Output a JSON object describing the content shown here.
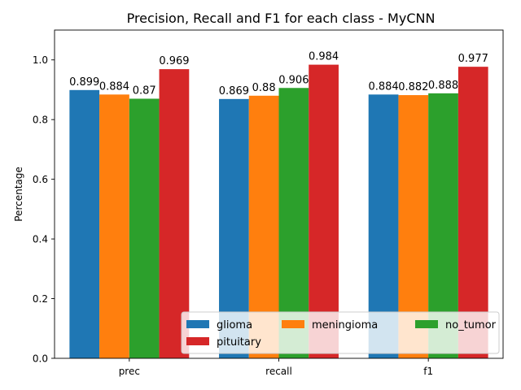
{
  "chart_data": {
    "type": "bar",
    "title": "Precision, Recall and F1 for each class - MyCNN",
    "xlabel": "",
    "ylabel": "Percentage",
    "categories": [
      "prec",
      "recall",
      "f1"
    ],
    "ylim": [
      0,
      1.1
    ],
    "yticks": [
      "0.0",
      "0.2",
      "0.4",
      "0.6",
      "0.8",
      "1.0"
    ],
    "grid": false,
    "legend_position": "lower-right",
    "series": [
      {
        "name": "glioma",
        "color": "#1f77b4",
        "values": [
          0.899,
          0.869,
          0.884
        ],
        "labels": [
          "0.899",
          "0.869",
          "0.884"
        ]
      },
      {
        "name": "meningioma",
        "color": "#ff7f0e",
        "values": [
          0.884,
          0.88,
          0.882
        ],
        "labels": [
          "0.884",
          "0.88",
          "0.882"
        ]
      },
      {
        "name": "no_tumor",
        "color": "#2ca02c",
        "values": [
          0.87,
          0.906,
          0.888
        ],
        "labels": [
          "0.87",
          "0.906",
          "0.888"
        ]
      },
      {
        "name": "pituitary",
        "color": "#d62728",
        "values": [
          0.969,
          0.984,
          0.977
        ],
        "labels": [
          "0.969",
          "0.984",
          "0.977"
        ]
      }
    ]
  }
}
